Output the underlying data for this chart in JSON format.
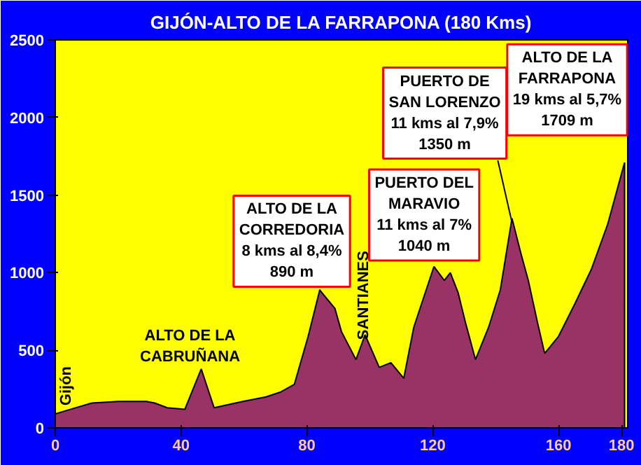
{
  "chart_data": {
    "type": "area",
    "title": "GIJÓN-ALTO DE LA FARRAPONA (180 Kms)",
    "x": [
      0,
      4.9,
      11.6,
      20,
      29,
      31.6,
      35.6,
      41.2,
      46.4,
      50.5,
      59.6,
      67,
      71.5,
      76,
      80.4,
      84.1,
      84.4,
      88.9,
      91,
      95.6,
      98.5,
      103,
      106.7,
      110.8,
      114,
      120.4,
      123.7,
      125.6,
      128.1,
      130.4,
      133.6,
      137.8,
      141.5,
      145.2,
      148.1,
      150.4,
      153.3,
      155.6,
      160,
      165.2,
      170.4,
      175.6,
      181
    ],
    "values": [
      90,
      120,
      160,
      170,
      170,
      160,
      130,
      120,
      380,
      130,
      170,
      200,
      230,
      280,
      590,
      890,
      880,
      770,
      620,
      440,
      600,
      390,
      420,
      320,
      650,
      1040,
      950,
      1000,
      870,
      680,
      440,
      650,
      890,
      1350,
      1120,
      950,
      680,
      480,
      590,
      800,
      1020,
      1310,
      1710
    ],
    "color": "#993366",
    "xlim": [
      0,
      182
    ],
    "ylim": [
      0,
      2500
    ],
    "xticks": [
      0,
      40,
      80,
      120,
      160,
      180
    ],
    "yticks": [
      0,
      500,
      1000,
      1500,
      2000,
      2500
    ],
    "grid": false,
    "annotations": [
      {
        "text": "Gijón",
        "x": 0,
        "y": 90
      },
      {
        "text": "ALTO DE LA\nCABRUÑANA",
        "x": 46.4,
        "y": 380
      },
      {
        "text": "SANTIANES",
        "x": 98.5,
        "y": 602
      },
      {
        "text": "ALTO DE LA\nCORREDORIA\n8 kms al 8,4%\n890 m",
        "x": 84.1,
        "y": 887
      },
      {
        "text": "PUERTO DEL\nMARAVIO\n11 kms al 7%\n1040 m",
        "x": 120.4,
        "y": 1047
      },
      {
        "text": "PUERTO DE\nSAN LORENZO\n11 kms al 7,9%\n1350 m",
        "x": 145.2,
        "y": 1324
      },
      {
        "text": "ALTO DE LA\nFARRAPONA\n19 kms al 5,7%\n1709 m",
        "x": 181,
        "y": 1709
      }
    ]
  }
}
